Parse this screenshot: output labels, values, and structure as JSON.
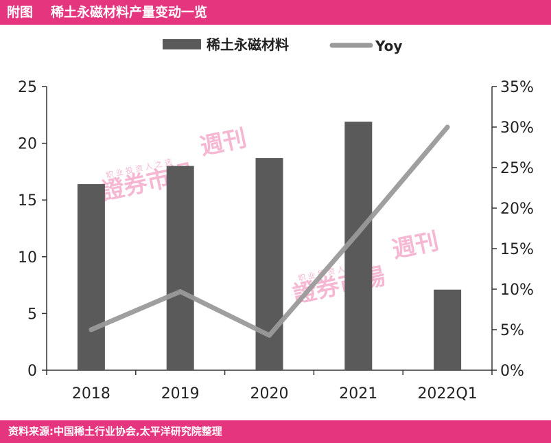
{
  "header": {
    "label": "附图",
    "title": "稀土永磁材料产量变动一览"
  },
  "footer": {
    "source": "资料来源:中国稀土行业协会,太平洋研究院整理"
  },
  "watermark": {
    "text": "證券市場",
    "subtext": "週刊",
    "small": "职 业 投 资 人 之 选"
  },
  "colors": {
    "bar": "#5a5a5a",
    "line": "#9a9a9a",
    "accent": "#e5357f"
  },
  "chart_data": {
    "type": "bar",
    "categories": [
      "2018",
      "2019",
      "2020",
      "2021",
      "2022Q1"
    ],
    "series": [
      {
        "name": "稀土永磁材料",
        "type": "bar",
        "axis": "left",
        "values": [
          16.4,
          18.0,
          18.7,
          21.9,
          7.1
        ]
      },
      {
        "name": "Yoy",
        "type": "line",
        "axis": "right",
        "values": [
          0.05,
          0.097,
          0.043,
          0.17,
          0.3
        ]
      }
    ],
    "ylim": [
      0,
      25
    ],
    "yticks": [
      "0",
      "5",
      "10",
      "15",
      "20",
      "25"
    ],
    "y2lim": [
      0,
      0.35
    ],
    "y2ticks": [
      "0%",
      "5%",
      "10%",
      "15%",
      "20%",
      "25%",
      "30%",
      "35%"
    ],
    "legend_position": "top-center",
    "grid": false
  }
}
